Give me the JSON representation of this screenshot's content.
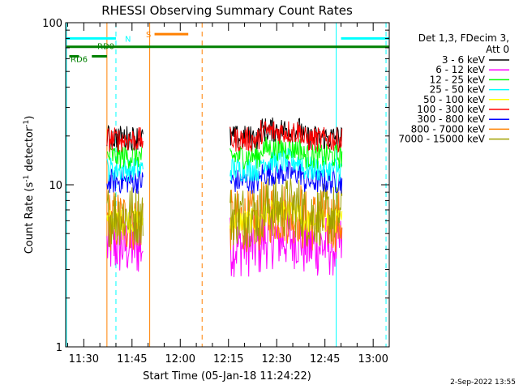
{
  "chart_data": {
    "type": "line",
    "title": "RHESSI Observing Summary Count Rates",
    "xlabel": "Start Time (05-Jan-18 11:24:22)",
    "ylabel_main": "Count Rate (s",
    "ylabel_sup1": "-1",
    "ylabel_mid": " detector",
    "ylabel_sup2": "-1",
    "ylabel_end": ")",
    "y_scale": "log",
    "ylim": [
      1,
      100
    ],
    "xlim_minutes": [
      684.37,
      785.0
    ],
    "y_ticks": [
      {
        "value": 1,
        "label": "1"
      },
      {
        "value": 10,
        "label": "10"
      },
      {
        "value": 100,
        "label": "100"
      }
    ],
    "x_ticks": [
      {
        "minutes": 690,
        "label": "11:30"
      },
      {
        "minutes": 705,
        "label": "11:45"
      },
      {
        "minutes": 720,
        "label": "12:00"
      },
      {
        "minutes": 735,
        "label": "12:15"
      },
      {
        "minutes": 750,
        "label": "12:30"
      },
      {
        "minutes": 765,
        "label": "12:45"
      },
      {
        "minutes": 780,
        "label": "13:00"
      }
    ],
    "legend_header": [
      "Det 1,3, FDecim 3,",
      "Att 0"
    ],
    "legend_placement": "right-outside",
    "data_segments": [
      {
        "start": 697.2,
        "end": 708.5
      },
      {
        "start": 735.5,
        "end": 770.5
      }
    ],
    "series": [
      {
        "name": "3 - 6 keV",
        "color": "#000000",
        "level": 19.5
      },
      {
        "name": "6 - 12 keV",
        "color": "#ff00ff",
        "level": 4.2
      },
      {
        "name": "12 - 25 keV",
        "color": "#00ff00",
        "level": 15.0
      },
      {
        "name": "25 - 50 keV",
        "color": "#00ffff",
        "level": 12.5
      },
      {
        "name": "50 - 100 keV",
        "color": "#ffff00",
        "level": 6.0
      },
      {
        "name": "100 - 300 keV",
        "color": "#ff0000",
        "level": 19.0
      },
      {
        "name": "300 - 800 keV",
        "color": "#0000ff",
        "level": 10.5
      },
      {
        "name": "800 - 7000 keV",
        "color": "#ff8000",
        "level": 6.0
      },
      {
        "name": "7000 - 15000 keV",
        "color": "#a0a000",
        "level": 6.5
      }
    ],
    "attenuator_bars": [
      {
        "label": "N",
        "color": "#00ffff",
        "y": 80,
        "spans": [
          [
            684.6,
            700.0
          ],
          [
            770.0,
            785.0
          ]
        ]
      },
      {
        "label": "S",
        "color": "#ff8000",
        "y": 85,
        "spans": [
          [
            712.0,
            722.5
          ]
        ]
      },
      {
        "label": "RD0",
        "color": "#008000",
        "y": 71,
        "spans": [
          [
            684.6,
            785.0
          ]
        ]
      },
      {
        "label": "RD6",
        "color": "#008000",
        "y": 62,
        "spans": [
          [
            685.5,
            688.5
          ],
          [
            692.5,
            697.2
          ]
        ]
      }
    ],
    "vlines": [
      {
        "minutes": 684.6,
        "color": "#00ffff",
        "dash": "solid"
      },
      {
        "minutes": 700.0,
        "color": "#00ffff",
        "dash": "dashed"
      },
      {
        "minutes": 697.2,
        "color": "#ff8000",
        "dash": "solid"
      },
      {
        "minutes": 710.5,
        "color": "#ff8000",
        "dash": "solid"
      },
      {
        "minutes": 726.8,
        "color": "#ff8000",
        "dash": "dashed"
      },
      {
        "minutes": 768.5,
        "color": "#00ffff",
        "dash": "solid"
      },
      {
        "minutes": 784.0,
        "color": "#00ffff",
        "dash": "dashed"
      }
    ],
    "timestamp": "2-Sep-2022 13:55"
  }
}
